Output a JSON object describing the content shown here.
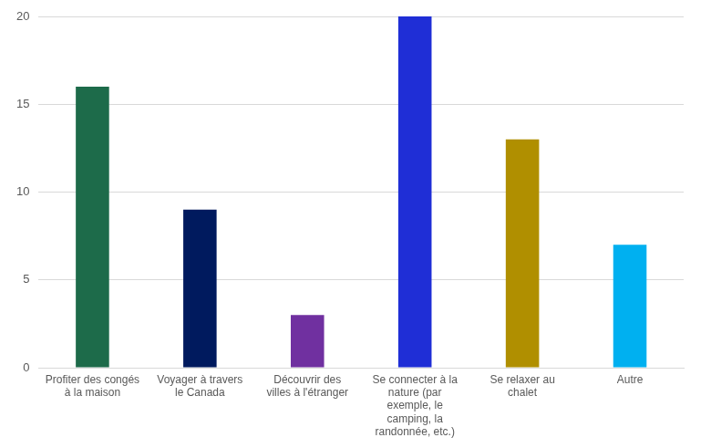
{
  "chart_data": {
    "type": "bar",
    "categories": [
      "Profiter des congés à la maison",
      "Voyager à travers le Canada",
      "Découvrir des villes à l'étranger",
      "Se connecter à la nature (par exemple, le camping, la randonnée, etc.)",
      "Se relaxer au chalet",
      "Autre"
    ],
    "values": [
      16,
      9,
      3,
      20,
      13,
      7
    ],
    "colors": [
      "#1d6b4a",
      "#001a5e",
      "#7030a0",
      "#1f2ed6",
      "#b08f00",
      "#00b0f0"
    ],
    "ylim": [
      0,
      20
    ],
    "yticks": [
      0,
      5,
      10,
      15,
      20
    ],
    "grid": true
  }
}
